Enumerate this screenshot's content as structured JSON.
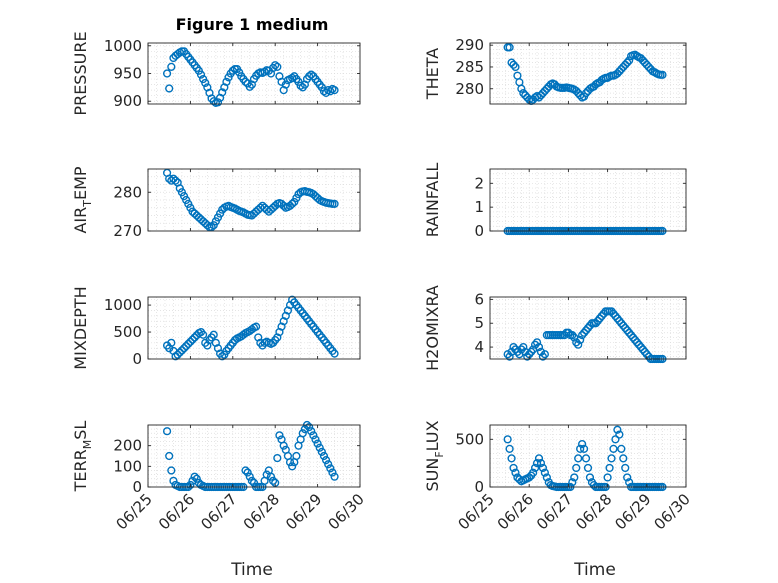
{
  "title": "Figure 1 medium",
  "chart_data": [
    {
      "id": "p1",
      "type": "scatter",
      "ylabel": "PRESSURE",
      "ylim": [
        895,
        1005
      ],
      "yticks": [
        900,
        950,
        1000
      ],
      "ytick_labels": [
        "900",
        "950",
        "1000"
      ],
      "x": [
        0.45,
        0.5,
        0.55,
        0.6,
        0.65,
        0.7,
        0.75,
        0.8,
        0.85,
        0.9,
        0.95,
        1.0,
        1.05,
        1.1,
        1.15,
        1.2,
        1.25,
        1.3,
        1.35,
        1.4,
        1.45,
        1.5,
        1.55,
        1.6,
        1.65,
        1.7,
        1.75,
        1.8,
        1.85,
        1.9,
        1.95,
        2.0,
        2.05,
        2.1,
        2.15,
        2.2,
        2.25,
        2.3,
        2.35,
        2.4,
        2.45,
        2.5,
        2.55,
        2.6,
        2.65,
        2.7,
        2.75,
        2.8,
        2.85,
        2.9,
        2.95,
        3.0,
        3.05,
        3.1,
        3.15,
        3.2,
        3.25,
        3.3,
        3.35,
        3.4,
        3.45,
        3.5,
        3.55,
        3.6,
        3.65,
        3.7,
        3.75,
        3.8,
        3.85,
        3.9,
        3.95,
        4.0,
        4.05,
        4.1,
        4.15,
        4.2,
        4.25,
        4.3,
        4.35,
        4.4
      ],
      "y": [
        950,
        923,
        962,
        978,
        982,
        985,
        988,
        990,
        990,
        985,
        980,
        975,
        970,
        965,
        960,
        955,
        948,
        940,
        933,
        925,
        915,
        905,
        900,
        897,
        898,
        906,
        916,
        925,
        935,
        943,
        950,
        955,
        958,
        958,
        952,
        945,
        940,
        935,
        932,
        926,
        930,
        940,
        946,
        950,
        952,
        951,
        953,
        956,
        955,
        950,
        960,
        965,
        962,
        945,
        935,
        920,
        930,
        938,
        940,
        942,
        945,
        940,
        935,
        928,
        925,
        930,
        940,
        945,
        948,
        945,
        940,
        935,
        930,
        925,
        918,
        915,
        920,
        918,
        922,
        920
      ]
    },
    {
      "id": "p2",
      "type": "scatter",
      "ylabel": "THETA",
      "ylim": [
        276.5,
        290.5
      ],
      "yticks": [
        280,
        285,
        290
      ],
      "ytick_labels": [
        "280",
        "285",
        "290"
      ],
      "x": [
        0.45,
        0.5,
        0.55,
        0.6,
        0.65,
        0.7,
        0.75,
        0.8,
        0.85,
        0.9,
        0.95,
        1.0,
        1.05,
        1.1,
        1.15,
        1.2,
        1.25,
        1.3,
        1.35,
        1.4,
        1.45,
        1.5,
        1.55,
        1.6,
        1.65,
        1.7,
        1.75,
        1.8,
        1.85,
        1.9,
        1.95,
        2.0,
        2.05,
        2.1,
        2.15,
        2.2,
        2.25,
        2.3,
        2.35,
        2.4,
        2.45,
        2.5,
        2.55,
        2.6,
        2.65,
        2.7,
        2.75,
        2.8,
        2.85,
        2.9,
        2.95,
        3.0,
        3.05,
        3.1,
        3.15,
        3.2,
        3.25,
        3.3,
        3.35,
        3.4,
        3.45,
        3.5,
        3.55,
        3.6,
        3.65,
        3.7,
        3.75,
        3.8,
        3.85,
        3.9,
        3.95,
        4.0,
        4.05,
        4.1,
        4.15,
        4.2,
        4.25,
        4.3,
        4.35,
        4.4
      ],
      "y": [
        289.5,
        289.5,
        286,
        285.5,
        285,
        283,
        281.5,
        280,
        279,
        278.5,
        278,
        277.5,
        277.2,
        277.5,
        278,
        278.3,
        278,
        278.5,
        279,
        279.5,
        280,
        280.5,
        281,
        281.2,
        281,
        280.5,
        280.3,
        280.2,
        280.2,
        280.2,
        280.3,
        280.2,
        280.1,
        280,
        279.8,
        279.5,
        279,
        278.5,
        278,
        278.2,
        279,
        279.5,
        280,
        280.3,
        280.5,
        281,
        281.3,
        281.5,
        282,
        282.3,
        282.5,
        282.5,
        282.8,
        283,
        283,
        283.2,
        283.5,
        284,
        284.5,
        285,
        285.5,
        286,
        286.5,
        287.5,
        287.7,
        287.8,
        287.5,
        287.2,
        287,
        286.5,
        286,
        285.5,
        285,
        284.5,
        284,
        283.8,
        283.5,
        283.3,
        283.2,
        283.2
      ]
    },
    {
      "id": "p3",
      "type": "scatter",
      "ylabel": "AIR_TEMP",
      "ylim": [
        270,
        286
      ],
      "yticks": [
        270,
        280
      ],
      "ytick_labels": [
        "270",
        "280"
      ],
      "x": [
        0.45,
        0.5,
        0.55,
        0.6,
        0.65,
        0.7,
        0.75,
        0.8,
        0.85,
        0.9,
        0.95,
        1.0,
        1.05,
        1.1,
        1.15,
        1.2,
        1.25,
        1.3,
        1.35,
        1.4,
        1.45,
        1.5,
        1.55,
        1.6,
        1.65,
        1.7,
        1.75,
        1.8,
        1.85,
        1.9,
        1.95,
        2.0,
        2.05,
        2.1,
        2.15,
        2.2,
        2.25,
        2.3,
        2.35,
        2.4,
        2.45,
        2.5,
        2.55,
        2.6,
        2.65,
        2.7,
        2.75,
        2.8,
        2.85,
        2.9,
        2.95,
        3.0,
        3.05,
        3.1,
        3.15,
        3.2,
        3.25,
        3.3,
        3.35,
        3.4,
        3.45,
        3.5,
        3.55,
        3.6,
        3.65,
        3.7,
        3.75,
        3.8,
        3.85,
        3.9,
        3.95,
        4.0,
        4.05,
        4.1,
        4.15,
        4.2,
        4.25,
        4.3,
        4.35,
        4.4
      ],
      "y": [
        285,
        283.5,
        283,
        283.5,
        283,
        282.5,
        281,
        280,
        279,
        278,
        277,
        276,
        275,
        274.5,
        274,
        273.5,
        273,
        272.5,
        272,
        271.5,
        271,
        271,
        271.5,
        272.5,
        273.5,
        274.5,
        275.5,
        276,
        276.3,
        276.5,
        276.2,
        276,
        275.8,
        275.5,
        275.2,
        275,
        274.8,
        274.5,
        274.2,
        274.1,
        274,
        274.5,
        275,
        275.5,
        276,
        276.5,
        276,
        275.5,
        275,
        275.5,
        276,
        276.5,
        277,
        277.2,
        277,
        276.5,
        276,
        276.2,
        276.5,
        277,
        277.5,
        278.5,
        279.5,
        280,
        280.2,
        280.3,
        280.1,
        280,
        279.8,
        279.5,
        279,
        278.5,
        278,
        277.7,
        277.5,
        277.3,
        277.2,
        277.1,
        277,
        277
      ]
    },
    {
      "id": "p4",
      "type": "scatter",
      "ylabel": "RAINFALL",
      "ylim": [
        0,
        2.6
      ],
      "yticks": [
        0,
        1,
        2
      ],
      "ytick_labels": [
        "0",
        "1",
        "2"
      ],
      "x": [
        0.45,
        0.5,
        0.55,
        0.6,
        0.65,
        0.7,
        0.75,
        0.8,
        0.85,
        0.9,
        0.95,
        1.0,
        1.05,
        1.1,
        1.15,
        1.2,
        1.25,
        1.3,
        1.35,
        1.4,
        1.45,
        1.5,
        1.55,
        1.6,
        1.65,
        1.7,
        1.75,
        1.8,
        1.85,
        1.9,
        1.95,
        2.0,
        2.05,
        2.1,
        2.15,
        2.2,
        2.25,
        2.3,
        2.35,
        2.4,
        2.45,
        2.5,
        2.55,
        2.6,
        2.65,
        2.7,
        2.75,
        2.8,
        2.85,
        2.9,
        2.95,
        3.0,
        3.05,
        3.1,
        3.15,
        3.2,
        3.25,
        3.3,
        3.35,
        3.4,
        3.45,
        3.5,
        3.55,
        3.6,
        3.65,
        3.7,
        3.75,
        3.8,
        3.85,
        3.9,
        3.95,
        4.0,
        4.05,
        4.1,
        4.15,
        4.2,
        4.25,
        4.3,
        4.35,
        4.4
      ],
      "y": [
        0,
        0,
        0,
        0,
        0,
        0,
        0,
        0,
        0,
        0,
        0,
        0,
        0,
        0,
        0,
        0,
        0,
        0,
        0,
        0,
        0,
        0,
        0,
        0,
        0,
        0,
        0,
        0,
        0,
        0,
        0,
        0,
        0,
        0,
        0,
        0,
        0,
        0,
        0,
        0,
        0,
        0,
        0,
        0,
        0,
        0,
        0,
        0,
        0,
        0,
        0,
        0,
        0,
        0,
        0,
        0,
        0,
        0,
        0,
        0,
        0,
        0,
        0,
        0,
        0,
        0,
        0,
        0,
        0,
        0,
        0,
        0,
        0,
        0,
        0,
        0,
        0,
        0,
        0,
        0
      ]
    },
    {
      "id": "p5",
      "type": "scatter",
      "ylabel": "MIXDEPTH",
      "ylim": [
        0,
        1150
      ],
      "yticks": [
        0,
        500,
        1000
      ],
      "ytick_labels": [
        "0",
        "500",
        "1000"
      ],
      "x": [
        0.45,
        0.5,
        0.55,
        0.6,
        0.65,
        0.7,
        0.75,
        0.8,
        0.85,
        0.9,
        0.95,
        1.0,
        1.05,
        1.1,
        1.15,
        1.2,
        1.25,
        1.3,
        1.35,
        1.4,
        1.45,
        1.5,
        1.55,
        1.6,
        1.65,
        1.7,
        1.75,
        1.8,
        1.85,
        1.9,
        1.95,
        2.0,
        2.05,
        2.1,
        2.15,
        2.2,
        2.25,
        2.3,
        2.35,
        2.4,
        2.45,
        2.5,
        2.55,
        2.6,
        2.65,
        2.7,
        2.75,
        2.8,
        2.85,
        2.9,
        2.95,
        3.0,
        3.05,
        3.1,
        3.15,
        3.2,
        3.25,
        3.3,
        3.35,
        3.4,
        3.45,
        3.5,
        3.55,
        3.6,
        3.65,
        3.7,
        3.75,
        3.8,
        3.85,
        3.9,
        3.95,
        4.0,
        4.05,
        4.1,
        4.15,
        4.2,
        4.25,
        4.3,
        4.35,
        4.4
      ],
      "y": [
        250,
        200,
        300,
        150,
        50,
        80,
        120,
        160,
        200,
        240,
        280,
        320,
        360,
        400,
        440,
        480,
        500,
        450,
        300,
        250,
        350,
        400,
        450,
        300,
        200,
        100,
        50,
        80,
        150,
        200,
        250,
        300,
        350,
        380,
        400,
        420,
        450,
        480,
        500,
        520,
        550,
        580,
        600,
        400,
        300,
        250,
        300,
        320,
        300,
        280,
        300,
        350,
        400,
        500,
        600,
        700,
        800,
        900,
        1000,
        1100,
        1050,
        1000,
        950,
        900,
        850,
        800,
        750,
        700,
        650,
        600,
        550,
        500,
        450,
        400,
        350,
        300,
        250,
        200,
        150,
        100
      ]
    },
    {
      "id": "p6",
      "type": "scatter",
      "ylabel": "H2OMIXRA",
      "ylim": [
        3.5,
        6.1
      ],
      "yticks": [
        4,
        5,
        6
      ],
      "ytick_labels": [
        "4",
        "5",
        "6"
      ],
      "x": [
        0.45,
        0.5,
        0.55,
        0.6,
        0.65,
        0.7,
        0.75,
        0.8,
        0.85,
        0.9,
        0.95,
        1.0,
        1.05,
        1.1,
        1.15,
        1.2,
        1.25,
        1.3,
        1.35,
        1.4,
        1.45,
        1.5,
        1.55,
        1.6,
        1.65,
        1.7,
        1.75,
        1.8,
        1.85,
        1.9,
        1.95,
        2.0,
        2.05,
        2.1,
        2.15,
        2.2,
        2.25,
        2.3,
        2.35,
        2.4,
        2.45,
        2.5,
        2.55,
        2.6,
        2.65,
        2.7,
        2.75,
        2.8,
        2.85,
        2.9,
        2.95,
        3.0,
        3.05,
        3.1,
        3.15,
        3.2,
        3.25,
        3.3,
        3.35,
        3.4,
        3.45,
        3.5,
        3.55,
        3.6,
        3.65,
        3.7,
        3.75,
        3.8,
        3.85,
        3.9,
        3.95,
        4.0,
        4.05,
        4.1,
        4.15,
        4.2,
        4.25,
        4.3,
        4.35,
        4.4
      ],
      "y": [
        3.7,
        3.6,
        3.8,
        4.0,
        3.9,
        3.8,
        3.7,
        3.9,
        4.0,
        3.8,
        3.6,
        3.7,
        3.8,
        3.9,
        4.1,
        4.2,
        4.0,
        3.8,
        3.6,
        3.7,
        4.5,
        4.5,
        4.5,
        4.5,
        4.5,
        4.5,
        4.5,
        4.5,
        4.5,
        4.5,
        4.6,
        4.6,
        4.5,
        4.5,
        4.4,
        4.2,
        4.1,
        4.3,
        4.5,
        4.6,
        4.7,
        4.8,
        4.9,
        5.0,
        5.0,
        5.0,
        5.1,
        5.2,
        5.3,
        5.4,
        5.5,
        5.5,
        5.5,
        5.5,
        5.4,
        5.3,
        5.2,
        5.1,
        5.0,
        4.9,
        4.8,
        4.7,
        4.6,
        4.5,
        4.4,
        4.3,
        4.2,
        4.1,
        4.0,
        3.9,
        3.8,
        3.7,
        3.6,
        3.5,
        3.5,
        3.5,
        3.5,
        3.5,
        3.5,
        3.5
      ]
    },
    {
      "id": "p7",
      "type": "scatter",
      "ylabel": "TERR_MSL",
      "ylim": [
        0,
        300
      ],
      "yticks": [
        0,
        100,
        200
      ],
      "ytick_labels": [
        "0",
        "100",
        "200"
      ],
      "x": [
        0.45,
        0.5,
        0.55,
        0.6,
        0.65,
        0.7,
        0.75,
        0.8,
        0.85,
        0.9,
        0.95,
        1.0,
        1.05,
        1.1,
        1.15,
        1.2,
        1.25,
        1.3,
        1.35,
        1.4,
        1.45,
        1.5,
        1.55,
        1.6,
        1.65,
        1.7,
        1.75,
        1.8,
        1.85,
        1.9,
        1.95,
        2.0,
        2.05,
        2.1,
        2.15,
        2.2,
        2.25,
        2.3,
        2.35,
        2.4,
        2.45,
        2.5,
        2.55,
        2.6,
        2.65,
        2.7,
        2.75,
        2.8,
        2.85,
        2.9,
        2.95,
        3.0,
        3.05,
        3.1,
        3.15,
        3.2,
        3.25,
        3.3,
        3.35,
        3.4,
        3.45,
        3.5,
        3.55,
        3.6,
        3.65,
        3.7,
        3.75,
        3.8,
        3.85,
        3.9,
        3.95,
        4.0,
        4.05,
        4.1,
        4.15,
        4.2,
        4.25,
        4.3,
        4.35,
        4.4
      ],
      "y": [
        270,
        150,
        80,
        30,
        10,
        5,
        0,
        0,
        0,
        0,
        0,
        10,
        30,
        50,
        40,
        20,
        10,
        5,
        0,
        0,
        0,
        0,
        0,
        0,
        0,
        0,
        0,
        0,
        0,
        0,
        0,
        0,
        0,
        0,
        0,
        0,
        0,
        80,
        70,
        50,
        30,
        20,
        0,
        0,
        0,
        0,
        30,
        60,
        80,
        50,
        30,
        20,
        140,
        250,
        230,
        200,
        180,
        150,
        120,
        100,
        120,
        150,
        200,
        230,
        260,
        280,
        300,
        290,
        270,
        250,
        230,
        210,
        190,
        170,
        150,
        130,
        110,
        90,
        70,
        50
      ]
    },
    {
      "id": "p8",
      "type": "scatter",
      "ylabel": "SUN_FLUX",
      "ylim": [
        0,
        650
      ],
      "yticks": [
        0,
        500
      ],
      "ytick_labels": [
        "0",
        "500"
      ],
      "x": [
        0.45,
        0.5,
        0.55,
        0.6,
        0.65,
        0.7,
        0.75,
        0.8,
        0.85,
        0.9,
        0.95,
        1.0,
        1.05,
        1.1,
        1.15,
        1.2,
        1.25,
        1.3,
        1.35,
        1.4,
        1.45,
        1.5,
        1.55,
        1.6,
        1.65,
        1.7,
        1.75,
        1.8,
        1.85,
        1.9,
        1.95,
        2.0,
        2.05,
        2.1,
        2.15,
        2.2,
        2.25,
        2.3,
        2.35,
        2.4,
        2.45,
        2.5,
        2.55,
        2.6,
        2.65,
        2.7,
        2.75,
        2.8,
        2.85,
        2.9,
        2.95,
        3.0,
        3.05,
        3.1,
        3.15,
        3.2,
        3.25,
        3.3,
        3.35,
        3.4,
        3.45,
        3.5,
        3.55,
        3.6,
        3.65,
        3.7,
        3.75,
        3.8,
        3.85,
        3.9,
        3.95,
        4.0,
        4.05,
        4.1,
        4.15,
        4.2,
        4.25,
        4.3,
        4.35,
        4.4
      ],
      "y": [
        500,
        400,
        300,
        200,
        150,
        100,
        80,
        60,
        70,
        80,
        90,
        100,
        120,
        150,
        200,
        250,
        300,
        250,
        200,
        150,
        100,
        50,
        20,
        10,
        5,
        0,
        0,
        0,
        0,
        0,
        0,
        0,
        0,
        50,
        100,
        200,
        300,
        400,
        450,
        400,
        300,
        200,
        100,
        50,
        20,
        0,
        0,
        0,
        0,
        0,
        0,
        100,
        200,
        300,
        400,
        500,
        600,
        550,
        400,
        300,
        200,
        100,
        50,
        0,
        0,
        0,
        0,
        0,
        0,
        0,
        0,
        0,
        0,
        0,
        0,
        0,
        0,
        0,
        0,
        0
      ]
    }
  ],
  "shared_x": {
    "xlim": [
      0,
      5
    ],
    "xtick_labels": [
      "06/25",
      "06/26",
      "06/27",
      "06/28",
      "06/29",
      "06/30"
    ],
    "xlabel": "Time"
  },
  "colors": {
    "marker": "#0072bd",
    "axis": "#262626",
    "grid": "#dcdcdc"
  }
}
